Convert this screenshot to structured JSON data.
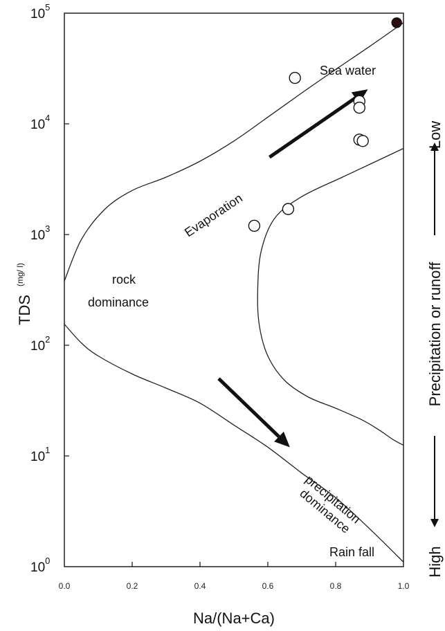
{
  "chart_data": {
    "type": "scatter",
    "xlabel": "Na/(Na+Ca)",
    "ylabel": "TDS",
    "ylabel_unit": "(mg/ l)",
    "xlim": [
      0.0,
      1.0
    ],
    "ylim": [
      1,
      100000
    ],
    "y_scale": "log",
    "grid": false,
    "x_ticks": [
      "0.0",
      "0.2",
      "0.4",
      "0.6",
      "0.8",
      "1.0"
    ],
    "y_ticks": [
      {
        "base": "10",
        "exp": "0"
      },
      {
        "base": "10",
        "exp": "1"
      },
      {
        "base": "10",
        "exp": "2"
      },
      {
        "base": "10",
        "exp": "3"
      },
      {
        "base": "10",
        "exp": "4"
      },
      {
        "base": "10",
        "exp": "5"
      }
    ],
    "series": [
      {
        "marker": "open-circle",
        "x": [
          0.68,
          0.87,
          0.87,
          0.87,
          0.88,
          0.66,
          0.56
        ],
        "y": [
          26000,
          16000,
          14000,
          7200,
          7000,
          1700,
          1200
        ]
      },
      {
        "marker": "filled-circle",
        "x": [
          0.98
        ],
        "y": [
          82000
        ]
      }
    ],
    "annotations": {
      "sea_water": "Sea water",
      "evaporation": "Evaporation",
      "rock_dominance_line1": "rock",
      "rock_dominance_line2": "dominance",
      "precipitation_line1": "precipitation",
      "precipitation_line2": "dominance",
      "rain_fall": "Rain fall"
    },
    "side_axis": {
      "low": "Low",
      "middle": "Precipitation or runoff",
      "high": "High"
    },
    "boundary_curves": {
      "upper": {
        "x": [
          0.0,
          0.05,
          0.12,
          0.2,
          0.3,
          0.4,
          0.5,
          0.6,
          0.7,
          0.8,
          0.9,
          1.0
        ],
        "y": [
          380,
          900,
          1700,
          2500,
          3300,
          4600,
          7000,
          11500,
          19000,
          31000,
          50000,
          82000
        ]
      },
      "lower": {
        "x": [
          0.0,
          0.05,
          0.1,
          0.2,
          0.3,
          0.4,
          0.5,
          0.6,
          0.7,
          0.8,
          0.9,
          1.0
        ],
        "y": [
          155,
          105,
          80,
          55,
          41,
          30,
          19,
          12,
          7,
          4.2,
          2.2,
          1.1
        ]
      },
      "inner": {
        "x": [
          1.0,
          0.92,
          0.82,
          0.7,
          0.62,
          0.58,
          0.57,
          0.575,
          0.6,
          0.65,
          0.72,
          0.8,
          0.88,
          0.93,
          0.97,
          1.0
        ],
        "y": [
          6000,
          4600,
          3300,
          2200,
          1400,
          700,
          300,
          150,
          80,
          48,
          34,
          27,
          21,
          17,
          14,
          12.5
        ]
      }
    }
  }
}
